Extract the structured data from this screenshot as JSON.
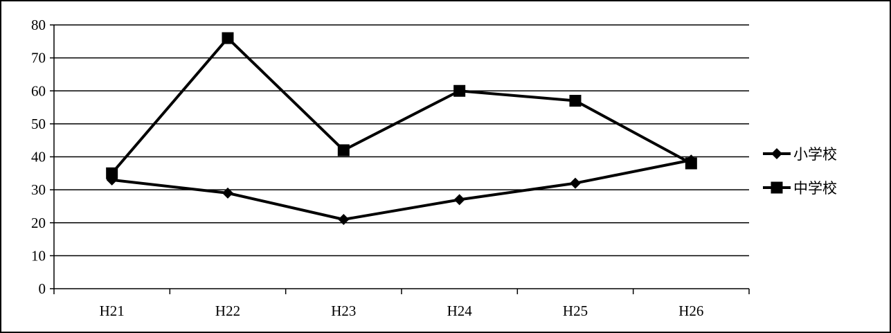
{
  "chart_data": {
    "type": "line",
    "title": "",
    "xlabel": "",
    "ylabel": "",
    "categories": [
      "H21",
      "H22",
      "H23",
      "H24",
      "H25",
      "H26"
    ],
    "ylim": [
      0,
      80
    ],
    "yticks": [
      0,
      10,
      20,
      30,
      40,
      50,
      60,
      70,
      80
    ],
    "grid": true,
    "legend_position": "right",
    "series": [
      {
        "name": "小学校",
        "marker": "diamond",
        "color": "#000000",
        "values": [
          33,
          29,
          21,
          27,
          32,
          39
        ]
      },
      {
        "name": "中学校",
        "marker": "square",
        "color": "#000000",
        "values": [
          35,
          76,
          42,
          60,
          57,
          38
        ]
      }
    ]
  }
}
